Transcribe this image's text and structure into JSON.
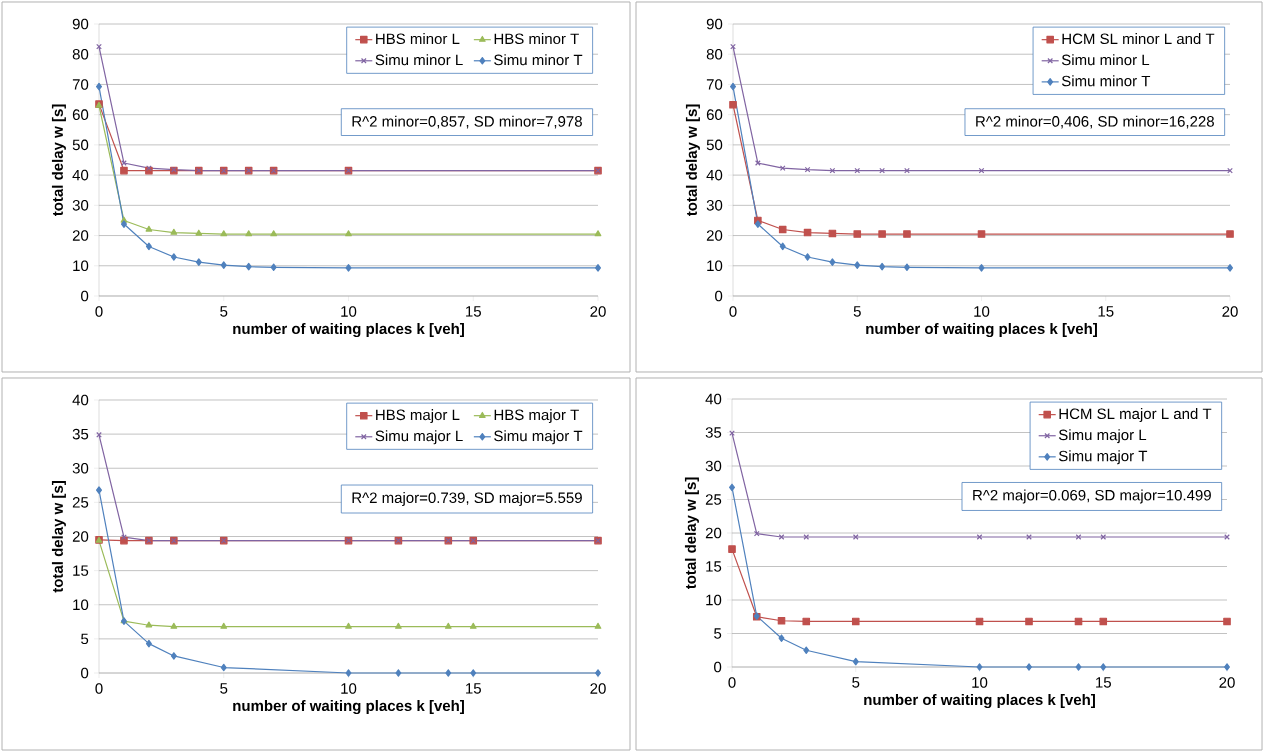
{
  "chart_data": [
    {
      "type": "line",
      "xlabel": "number of waiting places k [veh]",
      "ylabel": "total delay w [s]",
      "x": [
        0,
        1,
        2,
        3,
        4,
        5,
        6,
        7,
        10,
        20
      ],
      "xlim": [
        0,
        20
      ],
      "xticks": [
        0,
        5,
        10,
        15,
        20
      ],
      "ylim": [
        0,
        90
      ],
      "yticks": [
        0,
        10,
        20,
        30,
        40,
        50,
        60,
        70,
        80,
        90
      ],
      "grid": "y",
      "legend": "top right",
      "annotations": [
        "R^2 minor=0,857, SD minor=7,978"
      ],
      "series": [
        {
          "name": "HBS minor L",
          "color": "#c0504d",
          "marker": "square",
          "values": [
            63.5,
            41.5,
            41.5,
            41.5,
            41.5,
            41.5,
            41.5,
            41.5,
            41.5,
            41.5
          ]
        },
        {
          "name": "HBS minor T",
          "color": "#9bbb59",
          "marker": "triangle",
          "values": [
            63,
            25,
            22,
            21,
            20.7,
            20.5,
            20.5,
            20.5,
            20.5,
            20.5
          ]
        },
        {
          "name": "Simu minor L",
          "color": "#8064a2",
          "marker": "cross",
          "values": [
            82.5,
            44,
            42.3,
            41.8,
            41.5,
            41.5,
            41.5,
            41.5,
            41.5,
            41.5
          ]
        },
        {
          "name": "Simu minor T",
          "color": "#4f81bd",
          "marker": "diamond",
          "values": [
            69.3,
            23.8,
            16.4,
            12.9,
            11.2,
            10.2,
            9.7,
            9.5,
            9.3,
            9.3
          ]
        }
      ]
    },
    {
      "type": "line",
      "xlabel": "number of waiting places k [veh]",
      "ylabel": "total delay w [s]",
      "x": [
        0,
        1,
        2,
        3,
        4,
        5,
        6,
        7,
        10,
        20
      ],
      "xlim": [
        0,
        20
      ],
      "xticks": [
        0,
        5,
        10,
        15,
        20
      ],
      "ylim": [
        0,
        90
      ],
      "yticks": [
        0,
        10,
        20,
        30,
        40,
        50,
        60,
        70,
        80,
        90
      ],
      "grid": "y",
      "legend": "top right",
      "annotations": [
        "R^2 minor=0,406, SD minor=16,228"
      ],
      "series": [
        {
          "name": "HCM SL minor L and T",
          "color": "#c0504d",
          "marker": "square",
          "values": [
            63.3,
            25,
            22,
            21,
            20.7,
            20.5,
            20.5,
            20.5,
            20.5,
            20.5
          ]
        },
        {
          "name": "Simu minor L",
          "color": "#8064a2",
          "marker": "cross",
          "values": [
            82.5,
            44,
            42.3,
            41.8,
            41.5,
            41.5,
            41.5,
            41.5,
            41.5,
            41.5
          ]
        },
        {
          "name": "Simu minor T",
          "color": "#4f81bd",
          "marker": "diamond",
          "values": [
            69.3,
            23.8,
            16.4,
            12.9,
            11.2,
            10.2,
            9.7,
            9.5,
            9.3,
            9.3
          ]
        }
      ]
    },
    {
      "type": "line",
      "xlabel": "number of waiting places k [veh]",
      "ylabel": "total delay w [s]",
      "x": [
        0,
        1,
        2,
        3,
        5,
        10,
        12,
        14,
        15,
        20
      ],
      "xlim": [
        0,
        20
      ],
      "xticks": [
        0,
        5,
        10,
        15,
        20
      ],
      "ylim": [
        0,
        40
      ],
      "yticks": [
        0,
        5,
        10,
        15,
        20,
        25,
        30,
        35,
        40
      ],
      "grid": "y",
      "legend": "top right",
      "annotations": [
        "R^2 major=0.739, SD major=5.559"
      ],
      "series": [
        {
          "name": "HBS major L",
          "color": "#c0504d",
          "marker": "square",
          "values": [
            19.5,
            19.4,
            19.4,
            19.4,
            19.4,
            19.4,
            19.4,
            19.4,
            19.4,
            19.4
          ]
        },
        {
          "name": "HBS major T",
          "color": "#9bbb59",
          "marker": "triangle",
          "values": [
            19.4,
            7.6,
            7.0,
            6.8,
            6.8,
            6.8,
            6.8,
            6.8,
            6.8,
            6.8
          ]
        },
        {
          "name": "Simu major L",
          "color": "#8064a2",
          "marker": "cross",
          "values": [
            34.9,
            19.9,
            19.4,
            19.4,
            19.4,
            19.4,
            19.4,
            19.4,
            19.4,
            19.4
          ]
        },
        {
          "name": "Simu major T",
          "color": "#4f81bd",
          "marker": "diamond",
          "values": [
            26.8,
            7.6,
            4.3,
            2.5,
            0.8,
            0,
            0,
            0,
            0,
            0
          ]
        }
      ]
    },
    {
      "type": "line",
      "xlabel": "number of waiting places k [veh]",
      "ylabel": "total delay w [s]",
      "x": [
        0,
        1,
        2,
        3,
        5,
        10,
        12,
        14,
        15,
        20
      ],
      "xlim": [
        0,
        20
      ],
      "xticks": [
        0,
        5,
        10,
        15,
        20
      ],
      "ylim": [
        0,
        40
      ],
      "yticks": [
        0,
        5,
        10,
        15,
        20,
        25,
        30,
        35,
        40
      ],
      "grid": "y",
      "legend": "top right",
      "annotations": [
        "R^2 major=0.069, SD major=10.499"
      ],
      "series": [
        {
          "name": "HCM SL major L and T",
          "color": "#c0504d",
          "marker": "square",
          "values": [
            17.6,
            7.5,
            6.9,
            6.8,
            6.8,
            6.8,
            6.8,
            6.8,
            6.8,
            6.8
          ]
        },
        {
          "name": "Simu major L",
          "color": "#8064a2",
          "marker": "cross",
          "values": [
            34.9,
            19.9,
            19.4,
            19.4,
            19.4,
            19.4,
            19.4,
            19.4,
            19.4,
            19.4
          ]
        },
        {
          "name": "Simu major T",
          "color": "#4f81bd",
          "marker": "diamond",
          "values": [
            26.8,
            7.6,
            4.3,
            2.5,
            0.8,
            0,
            0,
            0,
            0,
            0
          ]
        }
      ]
    }
  ]
}
